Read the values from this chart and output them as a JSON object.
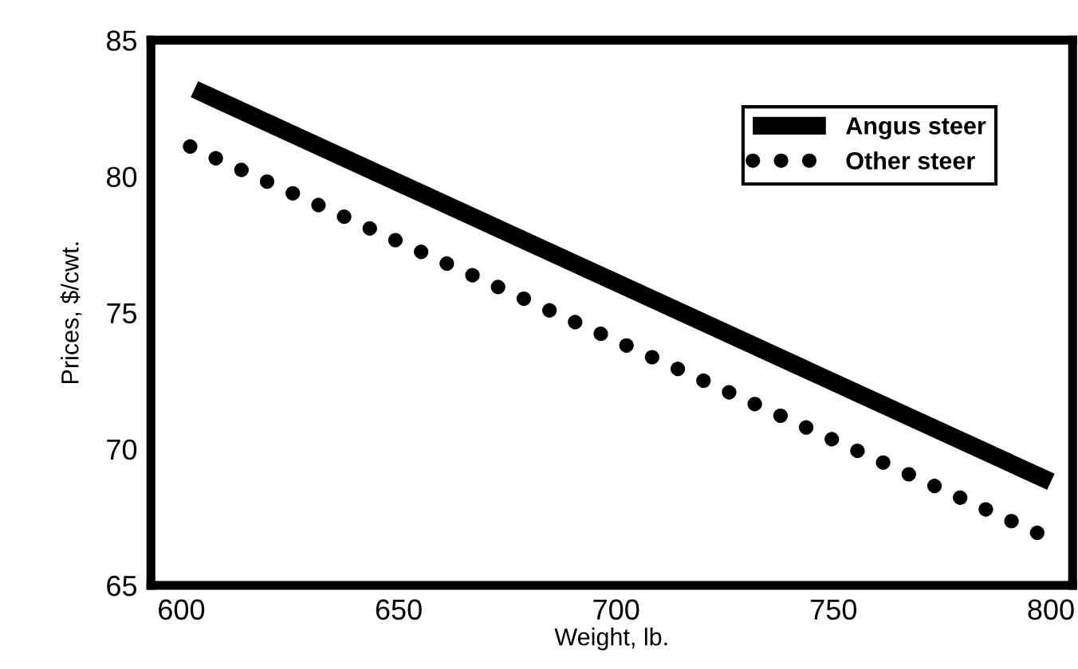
{
  "chart_data": {
    "type": "line",
    "xlabel": "Weight, lb.",
    "ylabel": "Prices, $/cwt.",
    "xlim": [
      593,
      805
    ],
    "xticks": [
      600,
      650,
      700,
      750,
      800
    ],
    "ylim": [
      65,
      85
    ],
    "yticks": [
      65,
      70,
      75,
      80,
      85
    ],
    "grid": false,
    "legend": "top right",
    "series": [
      {
        "name": "Angus steer",
        "color": "#000000",
        "x": [
          603,
          800
        ],
        "values": [
          83.2,
          68.8
        ],
        "line_style": "solid"
      },
      {
        "name": "Other steer",
        "color": "#000000",
        "x": [
          602,
          800
        ],
        "values": [
          81.1,
          66.7
        ],
        "line_style": "dotted"
      }
    ]
  }
}
